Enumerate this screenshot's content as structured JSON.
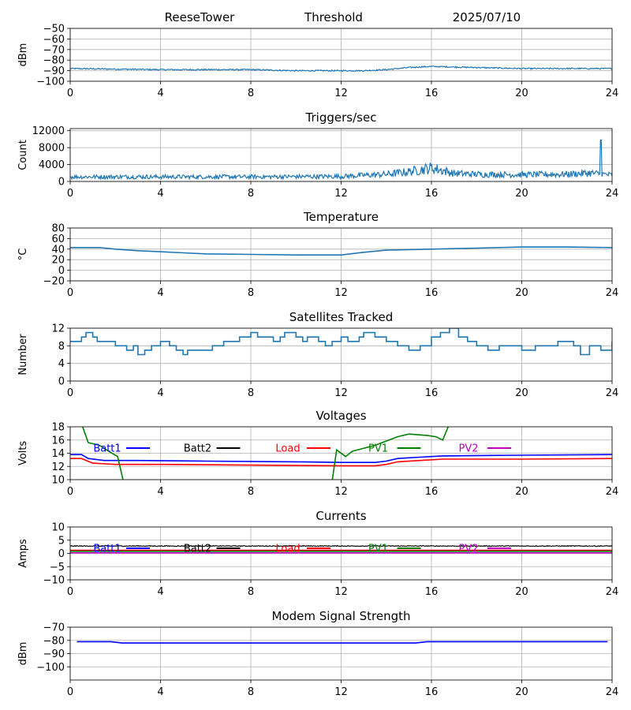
{
  "header": {
    "station": "ReeseTower",
    "date": "2025/07/10"
  },
  "chart_data": [
    {
      "type": "line",
      "title": "Threshold",
      "ylabel": "dBm",
      "ylim": [
        -100,
        -50
      ],
      "yticks": [
        -100,
        -90,
        -80,
        -70,
        -60,
        -50
      ],
      "xlim": [
        0,
        24
      ],
      "xticks": [
        0,
        4,
        8,
        12,
        16,
        20,
        24
      ],
      "grid": true,
      "series": [
        {
          "color": "#1f77b4",
          "noise": 0.6,
          "x": [
            0,
            2,
            4,
            6,
            8,
            10,
            12,
            13,
            14,
            15,
            16,
            17,
            18,
            20,
            22,
            24
          ],
          "y": [
            -88,
            -88.5,
            -89,
            -89,
            -89,
            -90,
            -90,
            -90,
            -89,
            -87,
            -86,
            -86.5,
            -87,
            -88,
            -88,
            -88
          ]
        }
      ]
    },
    {
      "type": "line",
      "title": "Triggers/sec",
      "ylabel": "Count",
      "ylim": [
        0,
        12500
      ],
      "yticks": [
        0,
        4000,
        8000,
        12000
      ],
      "xlim": [
        0,
        24
      ],
      "xticks": [
        0,
        4,
        8,
        12,
        16,
        20,
        24
      ],
      "grid": true,
      "series": [
        {
          "color": "#1f77b4",
          "noise": 500,
          "spikes": [
            [
              23.5,
              9800
            ]
          ],
          "x": [
            0,
            4,
            8,
            12,
            14,
            15,
            16,
            16.5,
            17,
            18,
            20,
            22,
            23,
            24
          ],
          "y": [
            1100,
            1100,
            1100,
            1200,
            1700,
            2300,
            3200,
            2600,
            1900,
            1700,
            1600,
            1700,
            2000,
            1500
          ]
        }
      ]
    },
    {
      "type": "line",
      "title": "Temperature",
      "ylabel": "°C",
      "ylim": [
        -20,
        80
      ],
      "yticks": [
        -20,
        0,
        20,
        40,
        60,
        80
      ],
      "xlim": [
        0,
        24
      ],
      "xticks": [
        0,
        4,
        8,
        12,
        16,
        20,
        24
      ],
      "grid": true,
      "series": [
        {
          "color": "#1f77b4",
          "noise": 0,
          "x": [
            0,
            1.3,
            2,
            3,
            4,
            5,
            6,
            8,
            10,
            12,
            13,
            14,
            16,
            18,
            20,
            22,
            24
          ],
          "y": [
            43,
            43,
            40,
            37,
            35,
            33,
            31,
            30,
            29,
            29,
            34,
            38,
            40,
            42,
            44,
            44,
            43
          ]
        }
      ]
    },
    {
      "type": "line",
      "title": "Satellites Tracked",
      "ylabel": "Number",
      "ylim": [
        0,
        12
      ],
      "yticks": [
        0,
        4,
        8,
        12
      ],
      "xlim": [
        0,
        24
      ],
      "xticks": [
        0,
        4,
        8,
        12,
        16,
        20,
        24
      ],
      "grid": true,
      "series": [
        {
          "color": "#1f77b4",
          "step": true,
          "x": [
            0,
            0.5,
            0.7,
            1.0,
            1.2,
            2.0,
            2.5,
            2.8,
            3.0,
            3.3,
            3.6,
            3.8,
            4.0,
            4.4,
            4.7,
            5.0,
            5.2,
            6.0,
            6.3,
            6.8,
            7.0,
            7.5,
            8.0,
            8.3,
            8.5,
            9.0,
            9.3,
            9.5,
            10.0,
            10.3,
            10.5,
            11.0,
            11.3,
            11.6,
            12.0,
            12.3,
            12.8,
            13.0,
            13.5,
            14.0,
            14.5,
            15.0,
            15.5,
            16.0,
            16.4,
            16.8,
            17.2,
            17.6,
            18.0,
            18.5,
            19.0,
            19.5,
            20.0,
            20.6,
            21.0,
            21.6,
            22.0,
            22.3,
            22.6,
            23.0,
            23.5,
            24.0
          ],
          "y": [
            9,
            10,
            11,
            10,
            9,
            8,
            7,
            8,
            6,
            7,
            8,
            8,
            9,
            8,
            7,
            6,
            7,
            7,
            8,
            9,
            9,
            10,
            11,
            10,
            10,
            9,
            10,
            11,
            10,
            9,
            10,
            9,
            8,
            9,
            10,
            9,
            10,
            11,
            10,
            9,
            8,
            7,
            8,
            10,
            11,
            12,
            10,
            9,
            8,
            7,
            8,
            8,
            7,
            8,
            8,
            9,
            9,
            8,
            6,
            8,
            7,
            9
          ]
        }
      ]
    },
    {
      "type": "line",
      "title": "Voltages",
      "ylabel": "Volts",
      "ylim": [
        10,
        18
      ],
      "yticks": [
        10,
        12,
        14,
        16,
        18
      ],
      "xlim": [
        0,
        24
      ],
      "xticks": [
        0,
        4,
        8,
        12,
        16,
        20,
        24
      ],
      "grid": true,
      "legend": [
        "Batt1",
        "Batt2",
        "Load",
        "PV1",
        "PV2"
      ],
      "series": [
        {
          "name": "Batt1",
          "color": "#0000ff",
          "x": [
            0,
            0.5,
            0.8,
            1.5,
            3,
            6,
            10,
            12,
            13.5,
            14,
            14.5,
            15.5,
            16.5,
            20,
            24
          ],
          "y": [
            13.8,
            13.8,
            13.2,
            12.9,
            12.9,
            12.8,
            12.7,
            12.6,
            12.6,
            12.8,
            13.2,
            13.4,
            13.6,
            13.7,
            13.8
          ]
        },
        {
          "name": "Batt2",
          "color": "#000000",
          "x": [],
          "y": []
        },
        {
          "name": "Load",
          "color": "#ff0000",
          "x": [
            0,
            0.5,
            1.0,
            2,
            4,
            8,
            12,
            13.5,
            14,
            14.5,
            15.5,
            16.5,
            20,
            24
          ],
          "y": [
            13.2,
            13.2,
            12.5,
            12.3,
            12.3,
            12.2,
            12.1,
            12.1,
            12.3,
            12.7,
            12.9,
            13.1,
            13.1,
            13.2
          ]
        },
        {
          "name": "PV1",
          "color": "#008000",
          "x": [
            0.5,
            0.8,
            1.3,
            1.8,
            2.1,
            2.35,
            11.6,
            11.8,
            12.2,
            12.5,
            13.5,
            14.5,
            15.0,
            15.8,
            16.2,
            16.5,
            16.8
          ],
          "y": [
            18.5,
            15.6,
            15.2,
            14.1,
            13.5,
            9.8,
            9.8,
            14.5,
            13.5,
            14.3,
            15.2,
            16.5,
            16.9,
            16.7,
            16.5,
            16.0,
            18.5
          ]
        },
        {
          "name": "PV2",
          "color": "#bf00bf",
          "x": [],
          "y": []
        }
      ]
    },
    {
      "type": "line",
      "title": "Currents",
      "ylabel": "Amps",
      "ylim": [
        -10,
        10
      ],
      "yticks": [
        -10,
        -5,
        0,
        5,
        10
      ],
      "xlim": [
        0,
        24
      ],
      "xticks": [
        0,
        4,
        8,
        12,
        16,
        20,
        24
      ],
      "grid": true,
      "legend": [
        "Batt1",
        "Batt2",
        "Load",
        "PV1",
        "PV2"
      ],
      "series": [
        {
          "name": "Batt1",
          "color": "#0000ff",
          "x": [],
          "y": []
        },
        {
          "name": "Batt2",
          "color": "#000000",
          "noise": 0.15,
          "x": [
            0,
            24
          ],
          "y": [
            2.8,
            2.8
          ]
        },
        {
          "name": "Load",
          "color": "#ff0000",
          "x": [
            0,
            24
          ],
          "y": [
            1.2,
            1.2
          ]
        },
        {
          "name": "PV1",
          "color": "#008000",
          "x": [
            0,
            24
          ],
          "y": [
            0.8,
            0.8
          ]
        },
        {
          "name": "PV2",
          "color": "#bf00bf",
          "x": [
            0,
            24
          ],
          "y": [
            0.2,
            0.2
          ]
        }
      ]
    },
    {
      "type": "line",
      "title": "Modem Signal Strength",
      "ylabel": "dBm",
      "ylim": [
        -110,
        -70
      ],
      "yticks": [
        -100,
        -90,
        -80,
        -70
      ],
      "xlim": [
        0,
        24
      ],
      "xticks": [
        0,
        4,
        8,
        12,
        16,
        20,
        24
      ],
      "grid": true,
      "series": [
        {
          "color": "#0000ff",
          "x": [
            0.3,
            1.8,
            2.3,
            15.3,
            15.8,
            23.8
          ],
          "y": [
            -81,
            -81,
            -82,
            -82,
            -81,
            -81
          ]
        }
      ]
    }
  ]
}
